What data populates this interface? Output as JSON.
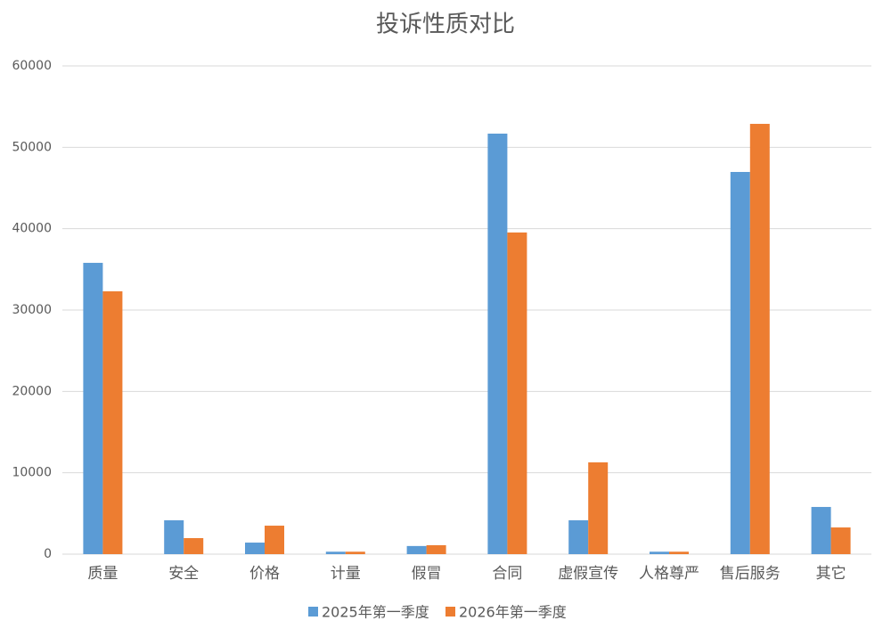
{
  "chart_data": {
    "type": "bar",
    "title": "投诉性质对比",
    "categories": [
      "质量",
      "安全",
      "价格",
      "计量",
      "假冒",
      "合同",
      "虚假宣传",
      "人格尊严",
      "售后服务",
      "其它"
    ],
    "series": [
      {
        "name": "2025年第一季度",
        "color": "#5b9bd5",
        "values": [
          35800,
          4160,
          1420,
          300,
          1000,
          51680,
          4160,
          300,
          46970,
          5800
        ]
      },
      {
        "name": "2026年第一季度",
        "color": "#ed7d31",
        "values": [
          32300,
          1970,
          3500,
          300,
          1100,
          39530,
          11280,
          300,
          52880,
          3280
        ]
      }
    ],
    "ylim": [
      0,
      60000
    ],
    "yticks": [
      0,
      10000,
      20000,
      30000,
      40000,
      50000,
      60000
    ],
    "grid": true,
    "legend": "bottom"
  }
}
